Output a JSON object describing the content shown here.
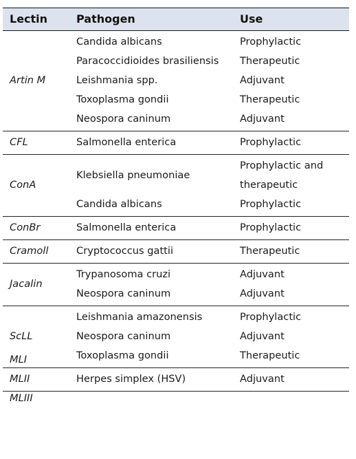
{
  "header": {
    "lectin": "Lectin",
    "pathogen": "Pathogen",
    "use": "Use"
  },
  "groups": [
    {
      "lectin": [
        "Artin M"
      ],
      "rows": [
        {
          "pathogen": "Candida albicans",
          "use": [
            "Prophylactic"
          ]
        },
        {
          "pathogen": "Paracoccidioides brasiliensis",
          "use": [
            "Therapeutic"
          ]
        },
        {
          "pathogen": "Leishmania spp.",
          "use": [
            "Adjuvant"
          ]
        },
        {
          "pathogen": "Toxoplasma gondii",
          "use": [
            "Therapeutic"
          ]
        },
        {
          "pathogen": "Neospora caninum",
          "use": [
            "Adjuvant"
          ]
        }
      ]
    },
    {
      "lectin": [
        "CFL"
      ],
      "rows": [
        {
          "pathogen": "Salmonella enterica",
          "use": [
            "Prophylactic"
          ]
        }
      ]
    },
    {
      "lectin": [
        "ConA"
      ],
      "rows": [
        {
          "pathogen": "Klebsiella pneumoniae",
          "use": [
            "Prophylactic and",
            "therapeutic"
          ]
        },
        {
          "pathogen": "Candida albicans",
          "use": [
            "Prophylactic"
          ]
        }
      ]
    },
    {
      "lectin": [
        "ConBr"
      ],
      "rows": [
        {
          "pathogen": "Salmonella enterica",
          "use": [
            "Prophylactic"
          ]
        }
      ]
    },
    {
      "lectin": [
        "Cramoll"
      ],
      "rows": [
        {
          "pathogen": "Cryptococcus gattii",
          "use": [
            "Therapeutic"
          ]
        }
      ]
    },
    {
      "lectin": [
        "Jacalin"
      ],
      "rows": [
        {
          "pathogen": "Trypanosoma cruzi",
          "use": [
            "Adjuvant"
          ]
        },
        {
          "pathogen": "Neospora caninum",
          "use": [
            "Adjuvant"
          ]
        }
      ]
    },
    {
      "lectin": [
        "ScLL"
      ],
      "rows": [
        {
          "pathogen": "Leishmania amazonensis",
          "use": [
            "Prophylactic"
          ]
        },
        {
          "pathogen": "Neospora caninum",
          "use": [
            "Adjuvant"
          ]
        },
        {
          "pathogen": "Toxoplasma gondii",
          "use": [
            "Therapeutic"
          ]
        }
      ]
    },
    {
      "lectin": [
        "MLI",
        "MLII",
        "MLIII"
      ],
      "rows": [
        {
          "pathogen": "Herpes simplex (HSV)",
          "use": [
            "Adjuvant"
          ]
        }
      ]
    }
  ]
}
